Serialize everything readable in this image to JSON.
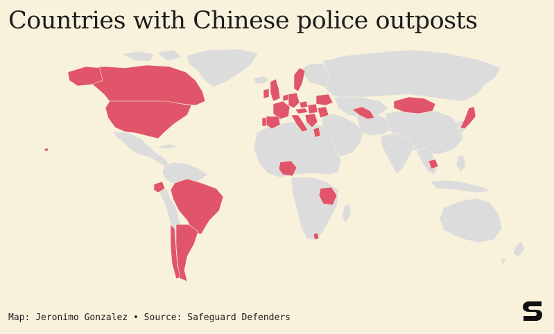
{
  "title": "Countries with Chinese police outposts",
  "credit": "Map: Jeronimo Gonzalez • Source: Safeguard Defenders",
  "colors": {
    "background": "#f8f1dc",
    "highlighted_country": "#e05569",
    "other_country": "#dcdcdc",
    "logo": "#111111"
  },
  "highlighted_countries": [
    "Canada",
    "United States",
    "Brazil",
    "Chile",
    "Argentina",
    "Ecuador",
    "United Kingdom",
    "Ireland",
    "Sweden",
    "Spain",
    "Portugal",
    "France",
    "Netherlands",
    "Germany",
    "Czech Republic",
    "Austria",
    "Hungary",
    "Serbia",
    "Croatia",
    "Slovenia",
    "Slovakia",
    "Italy",
    "Greece",
    "Romania",
    "Ukraine",
    "Uzbekistan",
    "Mongolia",
    "Japan",
    "Cambodia",
    "Nigeria",
    "Tanzania",
    "Lesotho"
  ],
  "logo_icon": "safeguard-s-logo-icon"
}
